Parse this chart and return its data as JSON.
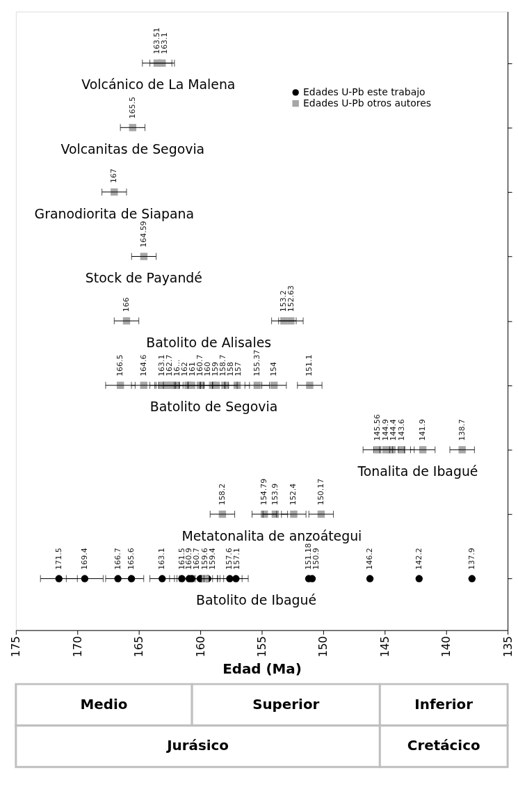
{
  "chart_data": {
    "type": "scatter",
    "orientation": "horizontal",
    "xlabel": "Edad (Ma)",
    "xlim": [
      175,
      135
    ],
    "xticks": [
      175,
      170,
      165,
      160,
      155,
      150,
      145,
      140,
      135
    ],
    "categories": [
      "Volcánico de La Malena",
      "Volcanitas de Segovia",
      "Granodiorita de Siapana",
      "Stock de Payandé",
      "Batolito de Alisales",
      "Batolito de Segovia",
      "Tonalita de Ibagué",
      "Metatonalita de anzoátegui",
      "Batolito de Ibagué"
    ],
    "tick_labels": "x",
    "grid": false,
    "legend": "top right",
    "series": [
      {
        "name": "Edades U-Pb este trabajo",
        "color": "#000000",
        "marker": "circle",
        "x": [
          "Batolito de Ibagué",
          "Batolito de Ibagué",
          "Batolito de Ibagué",
          "Batolito de Ibagué",
          "Batolito de Ibagué",
          "Batolito de Ibagué",
          "Batolito de Ibagué",
          "Batolito de Ibagué",
          "Batolito de Ibagué",
          "Batolito de Ibagué",
          "Batolito de Ibagué",
          "Batolito de Ibagué",
          "Batolito de Ibagué",
          "Batolito de Ibagué",
          "Batolito de Ibagué",
          "Batolito de Ibagué",
          "Batolito de Ibagué"
        ],
        "values": [
          171.5,
          169.4,
          166.7,
          165.6,
          163.1,
          161.5,
          160.9,
          160.7,
          160.0,
          159.4,
          157.6,
          157.1,
          151.18,
          150.9,
          146.2,
          142.2,
          137.9
        ],
        "errors": [
          1.5,
          1.5,
          1.0,
          1.0,
          1.0,
          1.0,
          1.0,
          1.0,
          1.0,
          1.0,
          1.0,
          1.0,
          null,
          null,
          null,
          null,
          null
        ],
        "value_labels": [
          "171.5",
          "169.4",
          "166.7",
          "165.6",
          "163.1",
          "161.5",
          "160.9",
          "160.7",
          null,
          "159.4",
          "157.6",
          "157.1",
          "151.18",
          "150.9",
          "146.2",
          "142.2",
          "137.9"
        ]
      },
      {
        "name": "Edades U-Pb otros autores",
        "color": "#a6a6a6",
        "marker": "square",
        "x": [
          "Volcánico de La Malena",
          "Volcánico de La Malena",
          "Volcanitas de Segovia",
          "Granodiorita de Siapana",
          "Stock de Payandé",
          "Batolito de Alisales",
          "Batolito de Alisales",
          "Batolito de Alisales",
          "Batolito de Segovia",
          "Batolito de Segovia",
          "Batolito de Segovia",
          "Batolito de Segovia",
          "Batolito de Segovia",
          "Batolito de Segovia",
          "Batolito de Segovia",
          "Batolito de Segovia",
          "Batolito de Segovia",
          "Batolito de Segovia",
          "Batolito de Segovia",
          "Batolito de Segovia",
          "Batolito de Segovia",
          "Batolito de Segovia",
          "Batolito de Segovia",
          "Batolito de Segovia",
          "Tonalita de Ibagué",
          "Tonalita de Ibagué",
          "Tonalita de Ibagué",
          "Tonalita de Ibagué",
          "Tonalita de Ibagué",
          "Tonalita de Ibagué",
          "Metatonalita de anzoátegui",
          "Metatonalita de anzoátegui",
          "Metatonalita de anzoátegui",
          "Metatonalita de anzoátegui",
          "Metatonalita de anzoátegui",
          "Batolito de Ibagué"
        ],
        "values": [
          163.51,
          163.1,
          165.5,
          167,
          164.59,
          166,
          153.2,
          152.63,
          166.5,
          164.6,
          163.1,
          162.7,
          162.4,
          162,
          161,
          160.7,
          160,
          159,
          158.7,
          158,
          157,
          155.37,
          154,
          151.1,
          145.56,
          144.9,
          144.4,
          143.6,
          141.9,
          138.7,
          158.2,
          154.79,
          153.9,
          152.4,
          150.17,
          159.6
        ],
        "errors": [
          1.2,
          1.0,
          1.0,
          1.0,
          1.0,
          1.0,
          1.0,
          1.0,
          1.2,
          1.0,
          1.0,
          1.0,
          1.0,
          1.0,
          1.0,
          1.0,
          1.0,
          1.0,
          1.0,
          1.0,
          1.0,
          1.0,
          1.0,
          1.0,
          1.2,
          1.0,
          1.0,
          1.0,
          1.0,
          1.0,
          1.0,
          1.0,
          1.0,
          1.0,
          1.0,
          1.0
        ],
        "value_labels": [
          "163.51",
          "163.1",
          "165.5",
          "167",
          "164.59",
          "166",
          "153.2",
          "152.63",
          "166.5",
          "164.6",
          "163.1",
          "162.7",
          "16...",
          "162",
          "161",
          "160.7",
          "160",
          "159",
          "158.7",
          "158",
          "157",
          "155.37",
          "154",
          "151.1",
          "145.56",
          "144.9",
          "144.4",
          "143.6",
          "141.9",
          "138.7",
          "158.2",
          "154.79",
          "153.9",
          "152.4",
          "150.17",
          "159.6"
        ]
      }
    ],
    "annotations": [
      "Medio",
      "Superior",
      "Inferior",
      "Jurásico",
      "Cretácico"
    ]
  }
}
